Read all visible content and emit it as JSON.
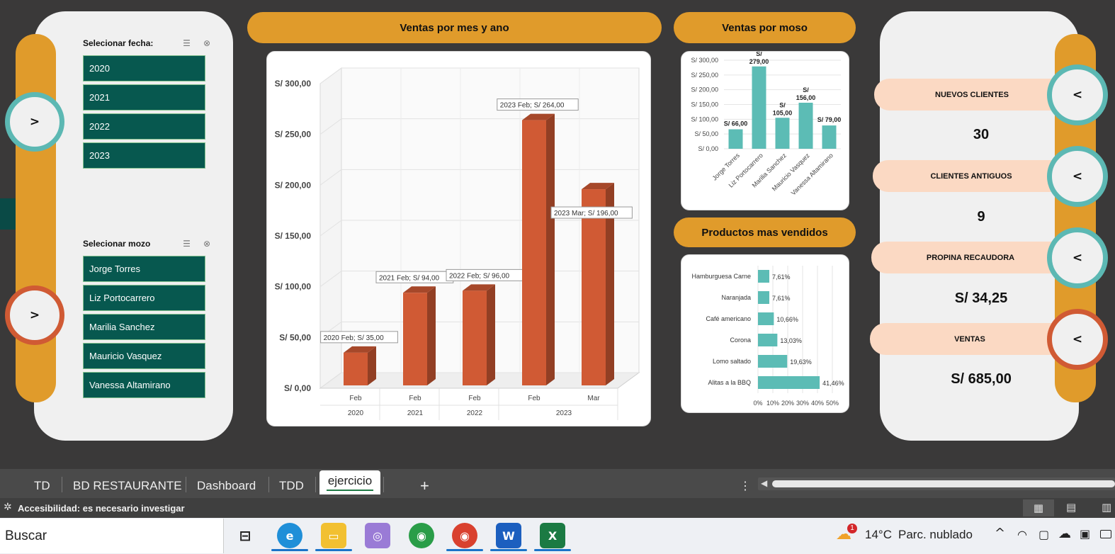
{
  "slicers": {
    "fecha": {
      "title": "Selecionar fecha:",
      "items": [
        "2020",
        "2021",
        "2022",
        "2023"
      ]
    },
    "mozo": {
      "title": "Selecionar mozo",
      "items": [
        "Jorge Torres",
        "Liz Portocarrero",
        "Marilia Sanchez",
        "Mauricio Vasquez",
        "Vanessa Altamirano"
      ]
    }
  },
  "left_buttons": {
    "top": ">",
    "bottom": ">"
  },
  "headers": {
    "ventas_mes": "Ventas por mes y ano",
    "ventas_moso": "Ventas por moso",
    "productos": "Productos mas vendidos"
  },
  "kpis": [
    {
      "label": "NUEVOS CLIENTES",
      "value": "30",
      "button": "<"
    },
    {
      "label": "CLIENTES ANTIGUOS",
      "value": "9",
      "button": "<"
    },
    {
      "label": "PROPINA RECAUDORA",
      "value": "S/ 34,25",
      "button": "<"
    },
    {
      "label": "VENTAS",
      "value": "S/ 685,00",
      "button": "<"
    }
  ],
  "chart_data": [
    {
      "type": "bar",
      "title": "",
      "categories": [
        [
          "Feb",
          "2020"
        ],
        [
          "Feb",
          "2021"
        ],
        [
          "Feb",
          "2022"
        ],
        [
          "Feb",
          "2023"
        ],
        [
          "Mar",
          "2023"
        ]
      ],
      "month_labels": [
        "Feb",
        "Feb",
        "Feb",
        "Feb",
        "Mar"
      ],
      "year_labels": [
        "2020",
        "2021",
        "2022",
        "2023"
      ],
      "values": [
        35,
        94,
        96,
        264,
        196
      ],
      "data_labels": [
        "2020 Feb; S/ 35,00",
        "2021 Feb; S/ 94,00",
        "2022 Feb; S/ 96,00",
        "2023 Feb; S/ 264,00",
        "2023 Mar; S/ 196,00"
      ],
      "y_ticks": [
        "S/ 0,00",
        "S/ 50,00",
        "S/ 100,00",
        "S/ 150,00",
        "S/ 200,00",
        "S/ 250,00",
        "S/ 300,00"
      ],
      "ylim": [
        0,
        300
      ],
      "color": "#d05a34",
      "grid": true
    },
    {
      "type": "bar",
      "title": "",
      "categories": [
        "Jorge Torres",
        "Liz Portocarrero",
        "Marilia Sanchez",
        "Mauricio Vasquez",
        "Vanessa Altamirano"
      ],
      "values": [
        66,
        279,
        105,
        156,
        79
      ],
      "data_labels": [
        "S/ 66,00",
        "S/ 279,00",
        "S/ 105,00",
        "S/ 156,00",
        "S/ 79,00"
      ],
      "y_ticks": [
        "S/ 0,00",
        "S/ 50,00",
        "S/ 100,00",
        "S/ 150,00",
        "S/ 200,00",
        "S/ 250,00",
        "S/ 300,00"
      ],
      "ylim": [
        0,
        300
      ],
      "color": "#5cbcb5",
      "grid": true
    },
    {
      "type": "bar",
      "orientation": "horizontal",
      "title": "",
      "categories": [
        "Hamburguesa Carne",
        "Naranjada",
        "Café americano",
        "Corona",
        "Lomo saltado",
        "Alitas a la BBQ"
      ],
      "values": [
        7.61,
        7.61,
        10.66,
        13.03,
        19.63,
        41.46
      ],
      "data_labels": [
        "7,61%",
        "7,61%",
        "10,66%",
        "13,03%",
        "19,63%",
        "41,46%"
      ],
      "x_ticks": [
        "0%",
        "10%",
        "20%",
        "30%",
        "40%",
        "50%"
      ],
      "xlim": [
        0,
        50
      ],
      "color": "#5cbcb5",
      "grid": true
    }
  ],
  "sheet_tabs": [
    "TD",
    "BD RESTAURANTE",
    "Dashboard",
    "TDD",
    "ejercicio"
  ],
  "active_tab": "ejercicio",
  "add_sheet": "+",
  "status": {
    "accessibility": "Accesibilidad: es necesario investigar"
  },
  "taskbar": {
    "search": "Buscar",
    "weather_temp": "14°C",
    "weather_desc": "Parc. nublado",
    "weather_badge": "1"
  },
  "icons": [
    "check-list-icon",
    "clear-filter-icon",
    "edge-icon",
    "file-explorer-icon",
    "chrome-icon",
    "word-icon",
    "excel-icon",
    "task-view-icon",
    "weather-icon",
    "wifi-icon",
    "onedrive-icon",
    "battery-icon",
    "normal-view-icon",
    "page-layout-icon",
    "accessibility-icon"
  ],
  "colors": {
    "accent": "#e09b2b",
    "teal": "#5cb8b3",
    "dark_green": "#07584f",
    "orange_ring": "#d05a34",
    "kpi_pill": "#fbd9c3"
  }
}
